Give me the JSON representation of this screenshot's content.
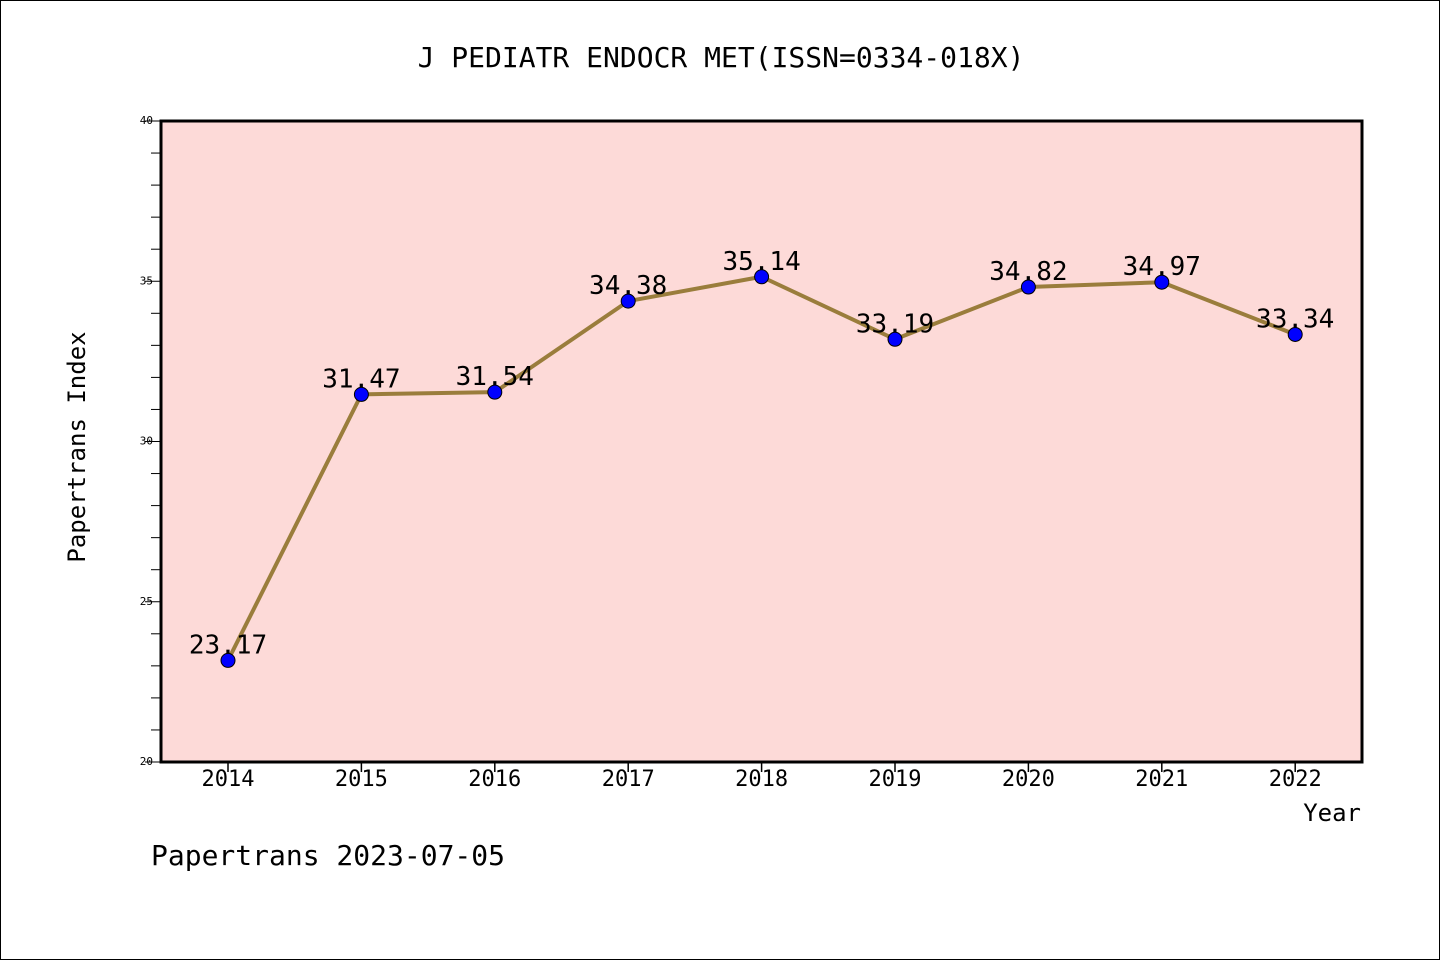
{
  "chart_data": {
    "type": "line",
    "title": "J PEDIATR ENDOCR MET(ISSN=0334-018X)",
    "xlabel": "Year",
    "ylabel": "Papertrans Index",
    "footer": "Papertrans 2023-07-05",
    "categories": [
      "2014",
      "2015",
      "2016",
      "2017",
      "2018",
      "2019",
      "2020",
      "2021",
      "2022"
    ],
    "values": [
      23.17,
      31.47,
      31.54,
      34.38,
      35.14,
      33.19,
      34.82,
      34.97,
      33.34
    ],
    "data_labels": [
      "23.17",
      "31.47",
      "31.54",
      "34.38",
      "35.14",
      "33.19",
      "34.82",
      "34.97",
      "33.34"
    ],
    "ylim": [
      20,
      40
    ],
    "yticks": [
      "20",
      "25",
      "30",
      "35",
      "40"
    ],
    "grid": false,
    "colors": {
      "plot_background": "#fddad8",
      "line": "#9a7d3c",
      "marker": "#0000ff"
    }
  }
}
